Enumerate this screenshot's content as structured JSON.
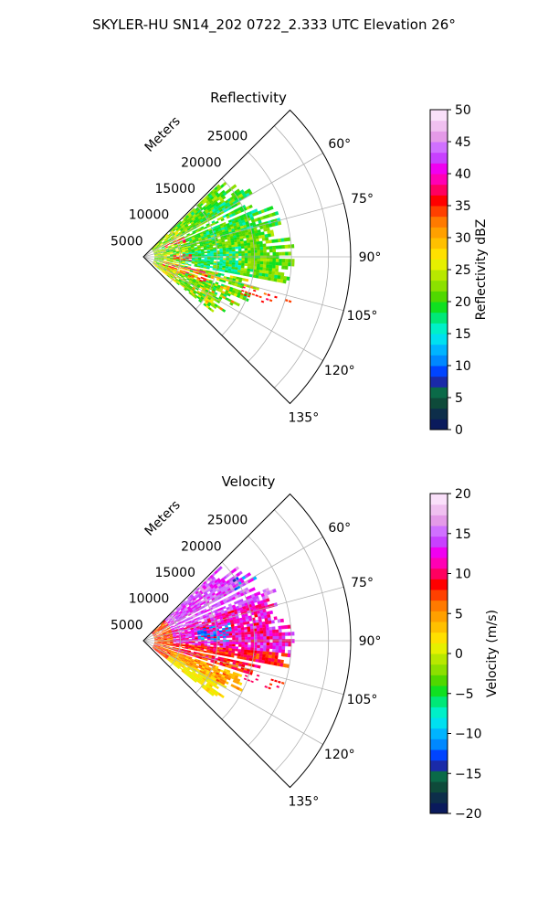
{
  "figure": {
    "title": "SKYLER-HU  SN14_202  0722_2.333 UTC Elevation 26°"
  },
  "chart_data": [
    {
      "type": "heatmap",
      "subtype": "radar-ppi-sector",
      "title": "Reflectivity",
      "range_label": "Meters",
      "range_ticks": [
        "5000",
        "10000",
        "15000",
        "20000",
        "25000"
      ],
      "range_max": 28000,
      "azimuth_ticks": [
        "60°",
        "75°",
        "90°",
        "105°",
        "120°",
        "135°"
      ],
      "azimuth_range": [
        45,
        135
      ],
      "grid": true,
      "colorbar": {
        "label": "Reflectivity dBZ",
        "min": 0,
        "max": 50,
        "ticks": [
          "0",
          "5",
          "10",
          "15",
          "20",
          "25",
          "30",
          "35",
          "40",
          "45",
          "50"
        ],
        "colors": [
          "#0a1a5c",
          "#0d2e4a",
          "#0e4a3a",
          "#0a6a48",
          "#1a2aa8",
          "#0044ff",
          "#0088ff",
          "#00b4ff",
          "#00e0f0",
          "#00f0c8",
          "#00e878",
          "#10e020",
          "#50d800",
          "#8ce000",
          "#b8e800",
          "#e6f000",
          "#ffe000",
          "#ffc000",
          "#ffa000",
          "#ff7a00",
          "#ff4000",
          "#ff0000",
          "#ff0060",
          "#ff00b4",
          "#f000f0",
          "#c840ff",
          "#d070ff",
          "#e49ae8",
          "#f0c0f0",
          "#fae0fa"
        ]
      },
      "echo_extent": {
        "az_min": 46,
        "az_max": 128,
        "range_min_m": 1500,
        "range_max_m": 19500
      },
      "dominant_values_dBZ": [
        18,
        22,
        25,
        35
      ]
    },
    {
      "type": "heatmap",
      "subtype": "radar-ppi-sector",
      "title": "Velocity",
      "range_label": "Meters",
      "range_ticks": [
        "5000",
        "10000",
        "15000",
        "20000",
        "25000"
      ],
      "range_max": 28000,
      "azimuth_ticks": [
        "60°",
        "75°",
        "90°",
        "105°",
        "120°",
        "135°"
      ],
      "azimuth_range": [
        45,
        135
      ],
      "grid": true,
      "colorbar": {
        "label": "Velocity (m/s)",
        "min": -20,
        "max": 20,
        "ticks": [
          "−20",
          "−15",
          "−10",
          "−5",
          "0",
          "5",
          "10",
          "15",
          "20"
        ],
        "colors": [
          "#0a1a5c",
          "#0d2e4a",
          "#0e4a3a",
          "#0a6a48",
          "#1a2aa8",
          "#0044ff",
          "#0088ff",
          "#00b4ff",
          "#00e0f0",
          "#00f0c8",
          "#00e878",
          "#10e020",
          "#50d800",
          "#8ce000",
          "#b8e800",
          "#e6f000",
          "#ffe000",
          "#ffc000",
          "#ffa000",
          "#ff7a00",
          "#ff4000",
          "#ff0000",
          "#ff0060",
          "#ff00b4",
          "#f000f0",
          "#c840ff",
          "#d070ff",
          "#e49ae8",
          "#f0c0f0",
          "#fae0fa"
        ]
      },
      "echo_extent": {
        "az_min": 46,
        "az_max": 128,
        "range_min_m": 1500,
        "range_max_m": 19500
      },
      "dominant_values_ms": [
        0,
        5,
        10,
        15,
        -10
      ]
    }
  ]
}
